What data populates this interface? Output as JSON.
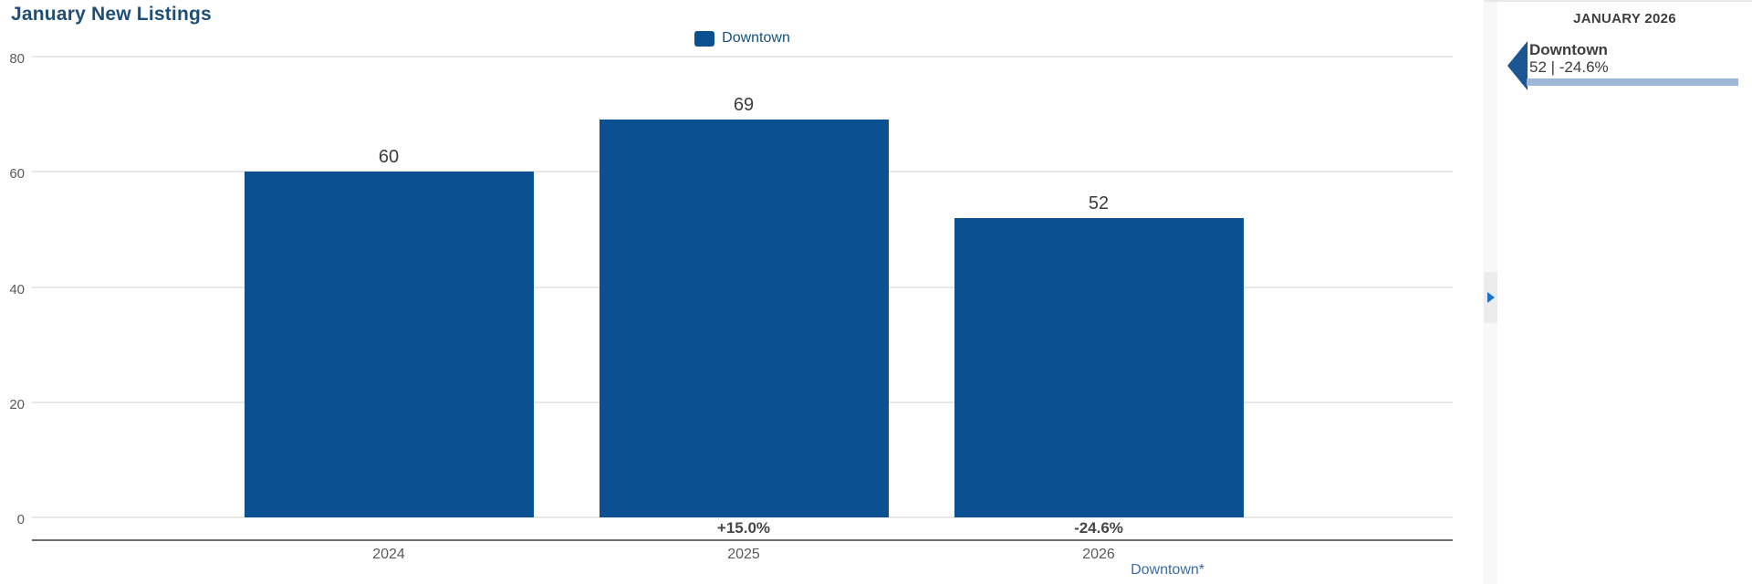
{
  "chart": {
    "title": "January New Listings",
    "footnote_link": "Downtown*"
  },
  "chart_data": {
    "type": "bar",
    "title": "January New Listings",
    "categories": [
      "2024",
      "2025",
      "2026"
    ],
    "series": [
      {
        "name": "Downtown",
        "values": [
          60,
          69,
          52
        ]
      }
    ],
    "value_labels": [
      "60",
      "69",
      "52"
    ],
    "change_labels": [
      "",
      "+15.0%",
      "-24.6%"
    ],
    "y_ticks": [
      0,
      20,
      40,
      60,
      80
    ],
    "ylim": [
      0,
      80
    ],
    "grid": true,
    "legend_position": "top-center",
    "bar_color": "#0b5191"
  },
  "splitter": {
    "expand_icon": "right-triangle-icon"
  },
  "sidebar": {
    "header": "JANUARY 2026",
    "items": [
      {
        "name": "Downtown",
        "stats": "52 | -24.6%"
      }
    ]
  },
  "colors": {
    "bar_blue": "#0b5191",
    "title_blue": "#1e4e78",
    "legend_text_blue": "#17517e",
    "link_blue": "#3a6da6",
    "expand_arrow_blue": "#1b72c8",
    "bookmark_blue": "#1b5592",
    "sidebar_bar_blue": "#9eb7d6"
  }
}
